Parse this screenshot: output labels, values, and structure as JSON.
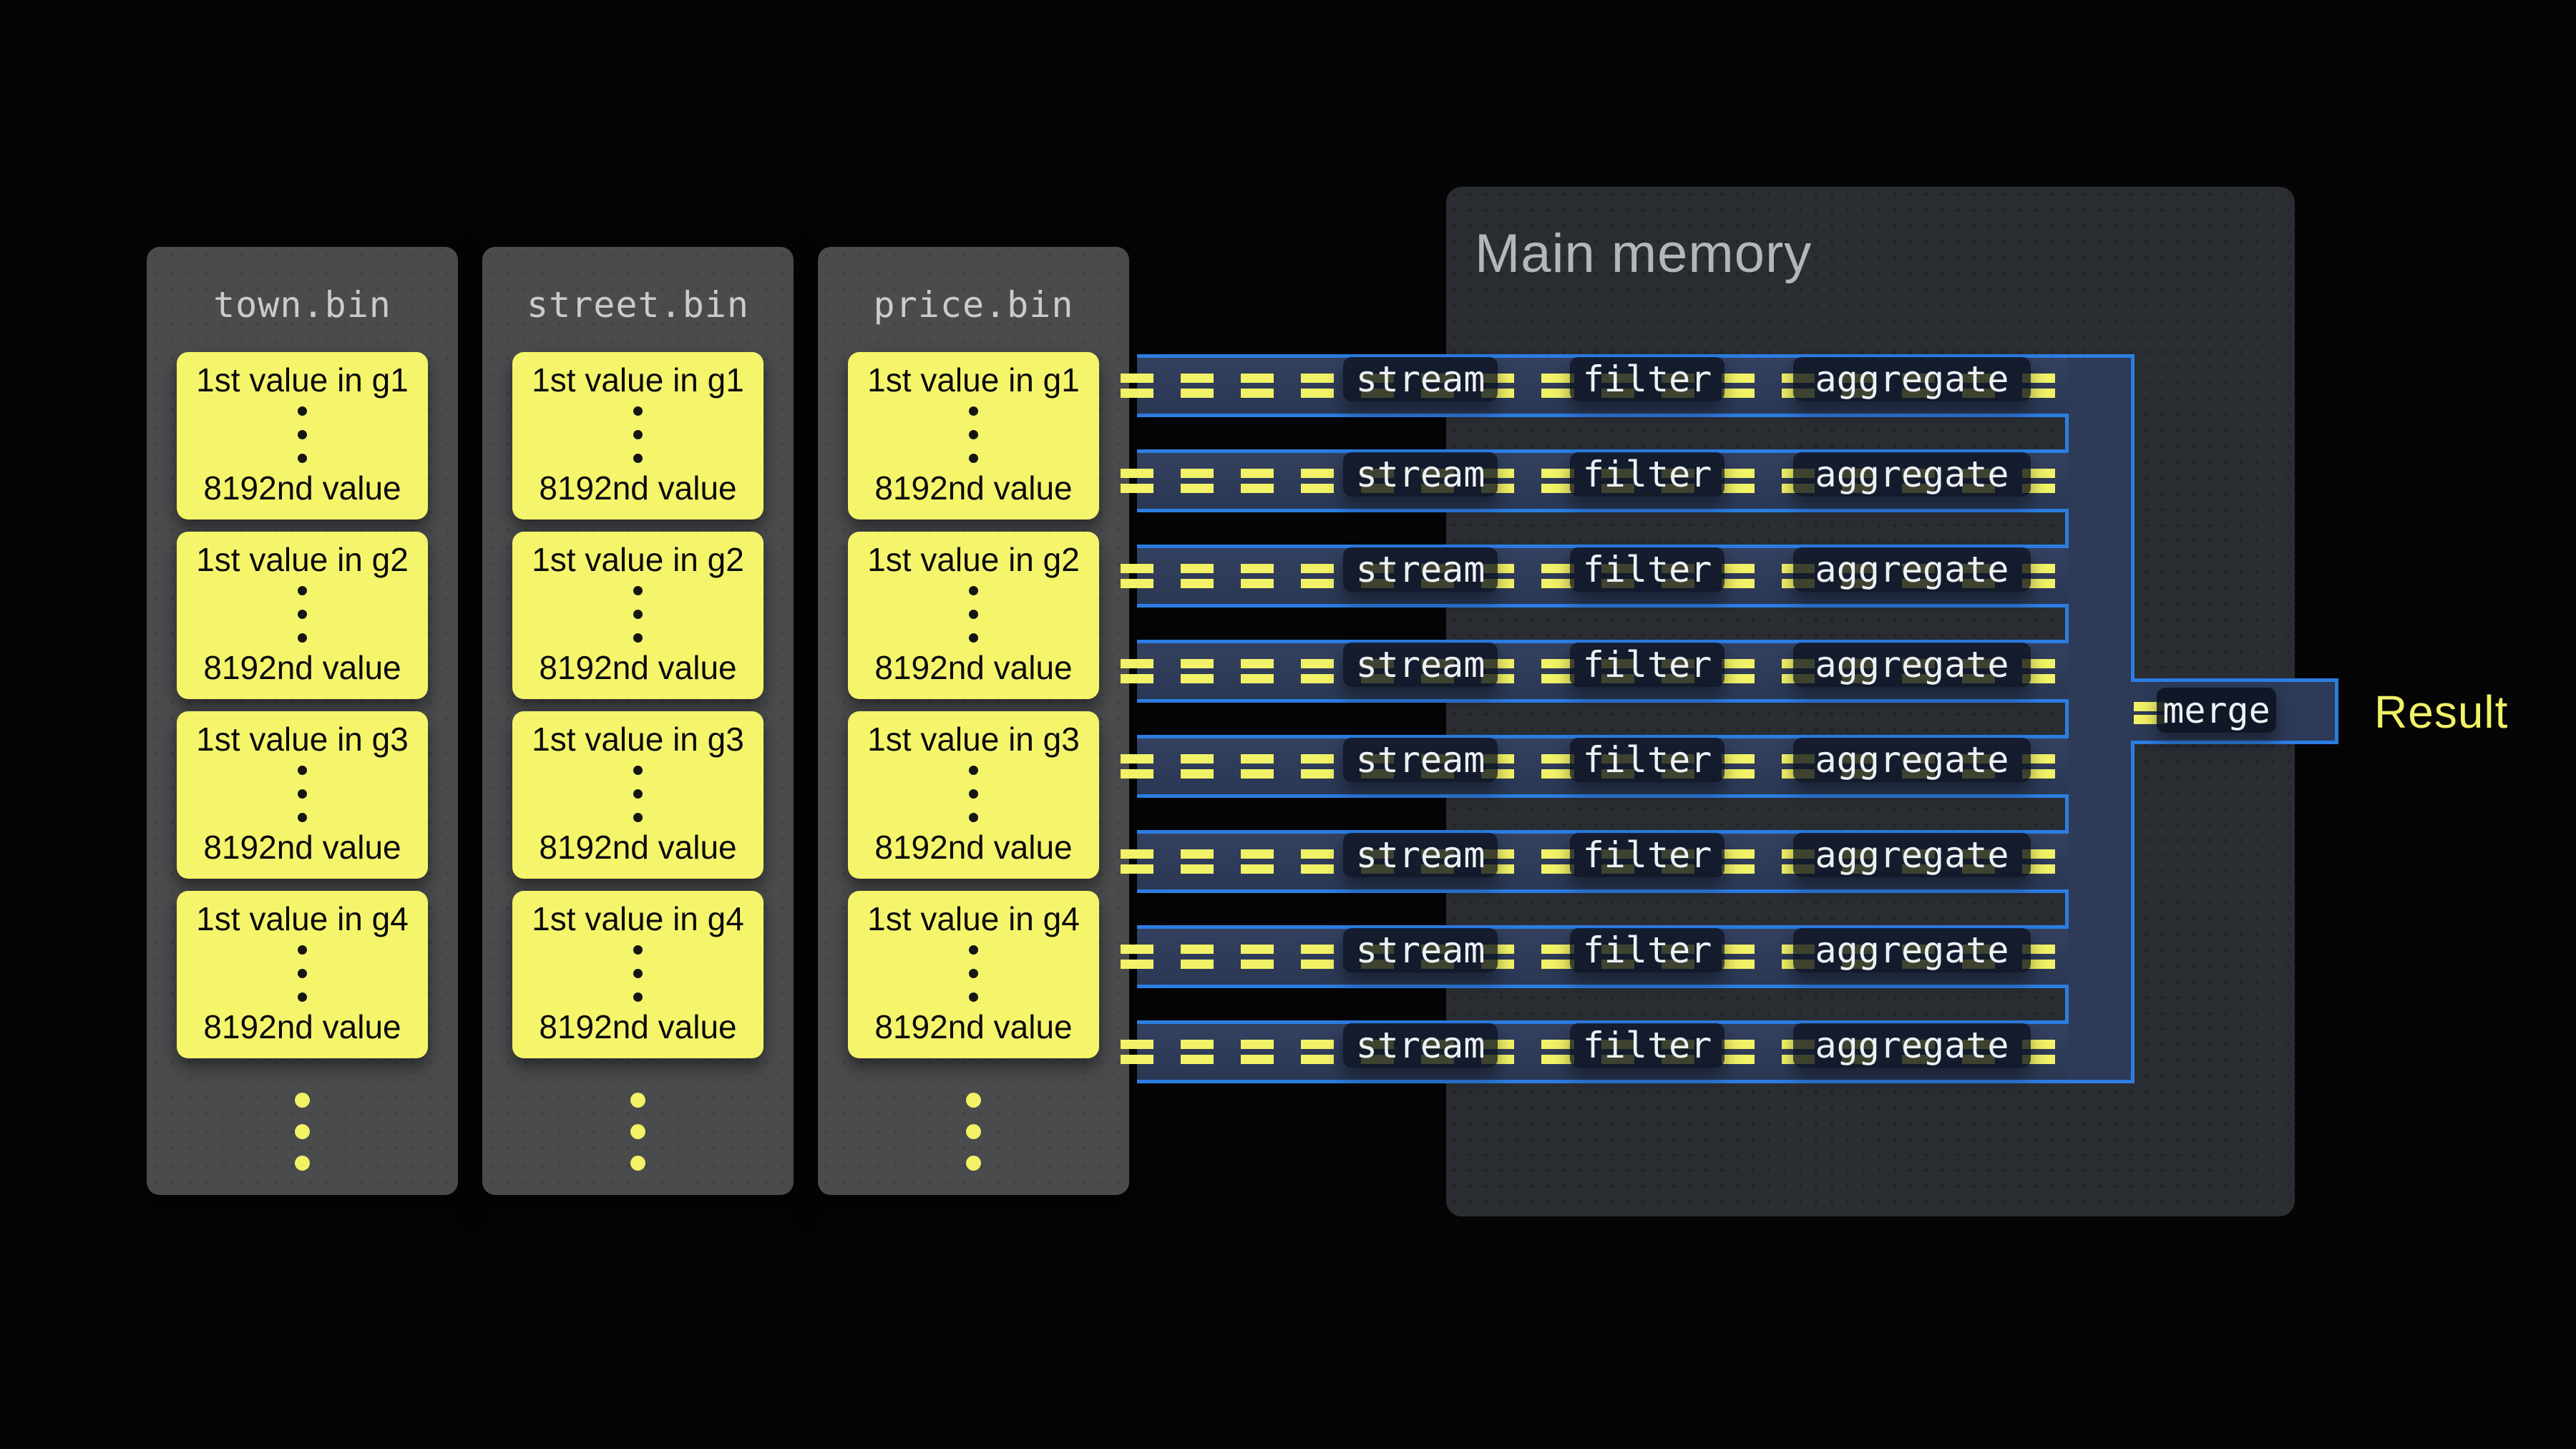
{
  "files": {
    "columns": [
      {
        "name": "town.bin",
        "groups": [
          {
            "first": "1st value in g1",
            "last": "8192nd value"
          },
          {
            "first": "1st value in g2",
            "last": "8192nd value"
          },
          {
            "first": "1st value in g3",
            "last": "8192nd value"
          },
          {
            "first": "1st value in g4",
            "last": "8192nd value"
          }
        ]
      },
      {
        "name": "street.bin",
        "groups": [
          {
            "first": "1st value in g1",
            "last": "8192nd value"
          },
          {
            "first": "1st value in g2",
            "last": "8192nd value"
          },
          {
            "first": "1st value in g3",
            "last": "8192nd value"
          },
          {
            "first": "1st value in g4",
            "last": "8192nd value"
          }
        ]
      },
      {
        "name": "price.bin",
        "groups": [
          {
            "first": "1st value in g1",
            "last": "8192nd value"
          },
          {
            "first": "1st value in g2",
            "last": "8192nd value"
          },
          {
            "first": "1st value in g3",
            "last": "8192nd value"
          },
          {
            "first": "1st value in g4",
            "last": "8192nd value"
          }
        ]
      }
    ]
  },
  "memory": {
    "title": "Main memory"
  },
  "pipelines": {
    "rows": [
      {
        "stream": "stream",
        "filter": "filter",
        "aggregate": "aggregate"
      },
      {
        "stream": "stream",
        "filter": "filter",
        "aggregate": "aggregate"
      },
      {
        "stream": "stream",
        "filter": "filter",
        "aggregate": "aggregate"
      },
      {
        "stream": "stream",
        "filter": "filter",
        "aggregate": "aggregate"
      },
      {
        "stream": "stream",
        "filter": "filter",
        "aggregate": "aggregate"
      },
      {
        "stream": "stream",
        "filter": "filter",
        "aggregate": "aggregate"
      },
      {
        "stream": "stream",
        "filter": "filter",
        "aggregate": "aggregate"
      },
      {
        "stream": "stream",
        "filter": "filter",
        "aggregate": "aggregate"
      }
    ]
  },
  "merge": {
    "label": "merge"
  },
  "result": {
    "label": "Result"
  },
  "colors": {
    "background": "#050506",
    "accent_blue": "#2c7de2",
    "channel_fill": "#2d3b58",
    "data_yellow": "#f2f268",
    "block_yellow": "#f5f56c",
    "card_gray": "#4a4b4d",
    "memory_gray": "#2a2d32",
    "label_text": "#edf1f5"
  }
}
